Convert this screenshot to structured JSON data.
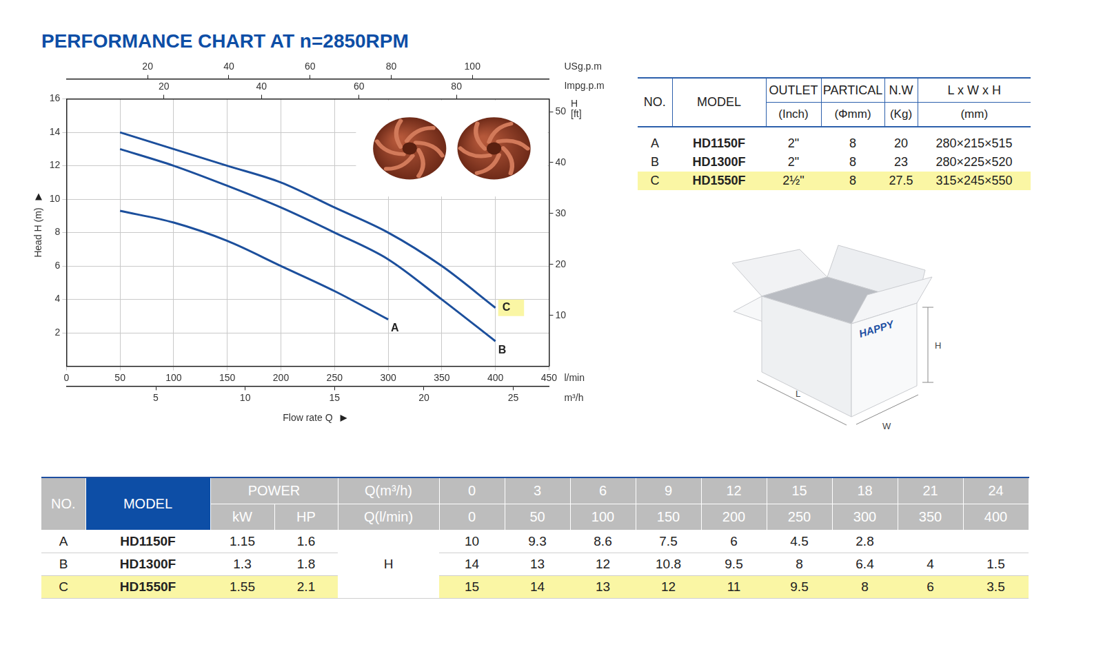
{
  "chart_data": {
    "type": "line",
    "title": "PERFORMANCE CHART AT n=2850RPM",
    "x_label": "Flow rate Q",
    "y_label": "Head H (m)",
    "x_unit": "l/min",
    "x": [
      50,
      100,
      150,
      200,
      250,
      300,
      350,
      400
    ],
    "series": [
      {
        "name": "A",
        "color": "#1c4f9c",
        "values": [
          9.3,
          8.6,
          7.5,
          6,
          4.5,
          2.8,
          null,
          null
        ]
      },
      {
        "name": "B",
        "color": "#1c4f9c",
        "values": [
          13,
          12,
          10.8,
          9.5,
          8,
          6.4,
          4,
          1.5
        ]
      },
      {
        "name": "C",
        "color": "#1c4f9c",
        "values": [
          14,
          13,
          12,
          11,
          9.5,
          8,
          6,
          3.5
        ]
      }
    ],
    "xlim": [
      0,
      450
    ],
    "xticks": [
      0,
      50,
      100,
      150,
      200,
      250,
      300,
      350,
      400,
      450
    ],
    "ylim": [
      0,
      16
    ],
    "yticks": [
      2,
      4,
      6,
      8,
      10,
      12,
      14,
      16
    ],
    "y2lim": [
      0,
      52.49
    ],
    "y2ticks": [
      10,
      20,
      30,
      40,
      50
    ],
    "y2_label": "H [ft]",
    "bottom_axes": [
      {
        "label": "m³/h",
        "lim": [
          0,
          27
        ],
        "ticks": [
          5,
          10,
          15,
          20,
          25
        ]
      }
    ],
    "top_axes": [
      {
        "label": "Impg.p.m",
        "lim": [
          0,
          98.99
        ],
        "ticks": [
          20,
          40,
          60,
          80
        ]
      },
      {
        "label": "USg.p.m",
        "lim": [
          0,
          118.88
        ],
        "ticks": [
          20,
          40,
          60,
          80,
          100
        ]
      }
    ],
    "grid": true
  },
  "spec_table": {
    "header": [
      "NO.",
      "MODEL",
      "OUTLET",
      "PARTICAL",
      "N.W",
      "L x W x H"
    ],
    "units": [
      "(Inch)",
      "(Φmm)",
      "(Kg)",
      "(mm)"
    ],
    "rows": [
      [
        "A",
        "HD1150F",
        "2\"",
        "8",
        "20",
        "280×215×515"
      ],
      [
        "B",
        "HD1300F",
        "2\"",
        "8",
        "23",
        "280×225×520"
      ],
      [
        "C",
        "HD1550F",
        "2½\"",
        "8",
        "27.5",
        "315×245×550"
      ]
    ]
  },
  "box": {
    "brand": "HAPPY",
    "length": "L",
    "width": "W",
    "height": "H"
  },
  "performance_table": {
    "header": {
      "no": "NO.",
      "model": "MODEL",
      "power": "POWER",
      "power_units": [
        "kW",
        "HP"
      ],
      "q1_label": "Q(m³/h)",
      "q1": [
        0,
        3,
        6,
        9,
        12,
        15,
        18,
        21,
        24
      ],
      "q2_label": "Q(l/min)",
      "q2": [
        0,
        50,
        100,
        150,
        200,
        250,
        300,
        350,
        400
      ],
      "h_label": "H"
    },
    "rows": [
      {
        "no": "A",
        "model": "HD1150F",
        "kw": 1.15,
        "hp": 1.6,
        "h": [
          10,
          9.3,
          8.6,
          7.5,
          6,
          4.5,
          2.8,
          null,
          null
        ]
      },
      {
        "no": "B",
        "model": "HD1300F",
        "kw": 1.3,
        "hp": 1.8,
        "h": [
          14,
          13,
          12,
          10.8,
          9.5,
          8,
          6.4,
          4,
          1.5
        ]
      },
      {
        "no": "C",
        "model": "HD1550F",
        "kw": 1.55,
        "hp": 2.1,
        "h": [
          15,
          14,
          13,
          12,
          11,
          9.5,
          8,
          6,
          3.5
        ]
      }
    ]
  }
}
